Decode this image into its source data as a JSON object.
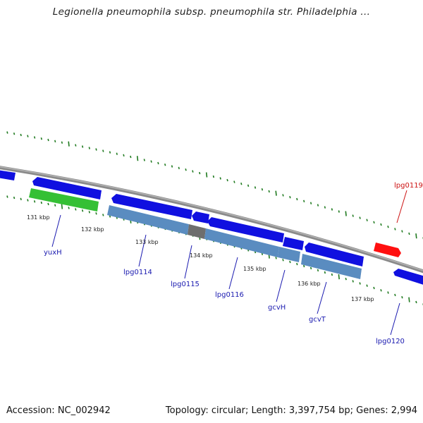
{
  "title": "Legionella pneumophila subsp. pneumophila str. Philadelphia ...",
  "footer": {
    "accession": "Accession: NC_002942",
    "summary": "Topology: circular; Length: 3,397,754 bp; Genes: 2,994"
  },
  "colors": {
    "backbone": "#8a8a8a",
    "forward_gene": "#1010e0",
    "reverse_gene": "#5a8cc0",
    "reverse_gene_dark": "#6e6e6e",
    "highlight_gene": "#35c035",
    "selected_gene": "#ff1010",
    "tick": "#1f7a1f",
    "label": "#1a1ab0",
    "label_selected": "#cc1111"
  },
  "scale_labels": [
    "131 kbp",
    "132 kbp",
    "133 kbp",
    "134 kbp",
    "135 kbp",
    "136 kbp",
    "137 kbp"
  ],
  "genes": [
    {
      "label": "yuxH",
      "strand": "reverse",
      "color": "highlight"
    },
    {
      "label": "lpg0114",
      "strand": "reverse",
      "color": "normal"
    },
    {
      "label": "lpg0115",
      "strand": "reverse",
      "color": "dark"
    },
    {
      "label": "lpg0116",
      "strand": "reverse",
      "color": "normal"
    },
    {
      "label": "gcvH",
      "strand": "reverse",
      "color": "normal"
    },
    {
      "label": "gcvT",
      "strand": "reverse",
      "color": "normal"
    },
    {
      "label": "lpg0119",
      "strand": "forward",
      "color": "selected"
    },
    {
      "label": "lpg0120",
      "strand": "forward",
      "color": "normal"
    }
  ]
}
